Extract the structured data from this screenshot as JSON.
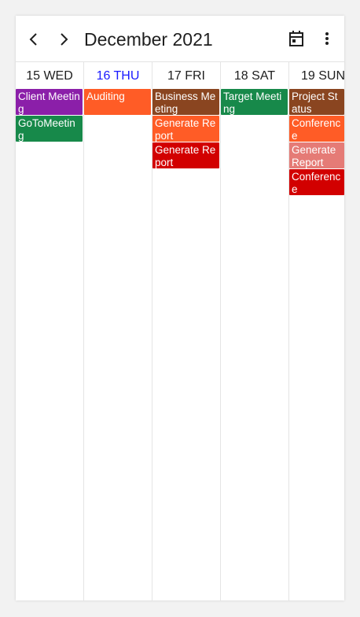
{
  "header": {
    "title": "December 2021",
    "prev_icon": "chevron-left-icon",
    "next_icon": "chevron-right-icon",
    "today_icon": "calendar-today-icon",
    "more_icon": "more-vertical-icon"
  },
  "days": [
    {
      "label": "15 WED"
    },
    {
      "label": "16 THU",
      "today": true
    },
    {
      "label": "17 FRI"
    },
    {
      "label": "18 SAT"
    },
    {
      "label": "19 SUN"
    }
  ],
  "appointments": {
    "wed_1": {
      "title": "Client Meeting",
      "color": "#8b1fa9"
    },
    "wed_2": {
      "title": "GoToMeeting",
      "color": "#17894a"
    },
    "thu_1": {
      "title": "Auditing",
      "color": "#ff5c26"
    },
    "fri_1": {
      "title": "Business Meeting",
      "color": "#8a4520"
    },
    "fri_2": {
      "title": "Generate Report",
      "color": "#ff5c26"
    },
    "fri_3": {
      "title": "Generate Report",
      "color": "#d20000"
    },
    "sat_1": {
      "title": "Target Meeting",
      "color": "#17894a"
    },
    "sun_1": {
      "title": "Project Status",
      "color": "#8a4520"
    },
    "sun_2": {
      "title": "Conference",
      "color": "#ff5c26"
    },
    "sun_3": {
      "title": "Generate Report",
      "color": "#e57b76"
    },
    "sun_4": {
      "title": "Conference",
      "color": "#d20000"
    }
  },
  "colors": {
    "today_text": "#1a1aff",
    "grid_line": "#e4e4e4"
  }
}
